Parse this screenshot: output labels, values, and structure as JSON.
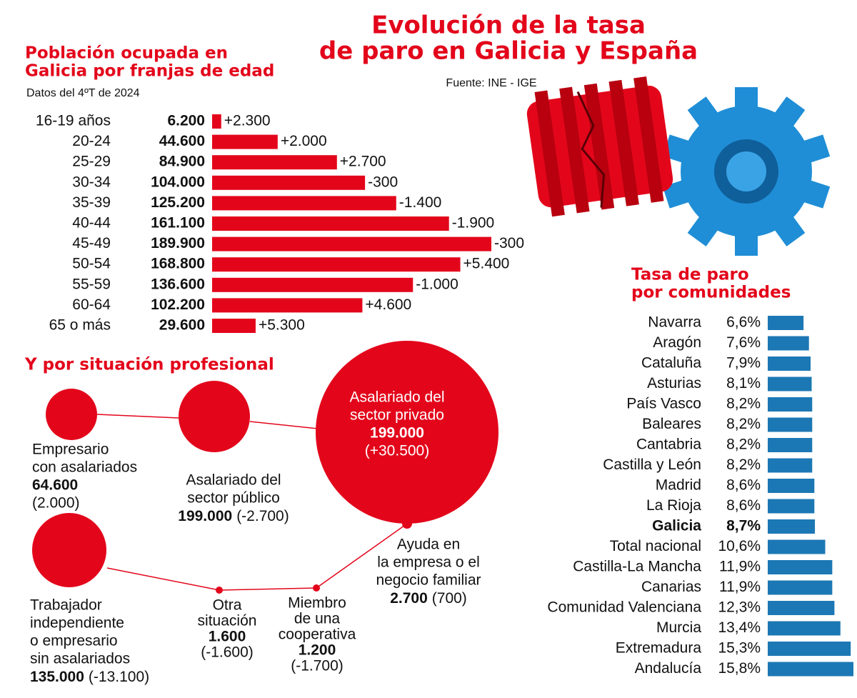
{
  "title": [
    "Evolución de la tasa",
    "de paro en Galicia y España"
  ],
  "source": "Fuente: INE - IGE",
  "chart_data": [
    {
      "type": "bar",
      "orientation": "horizontal",
      "title": [
        "Población ocupada en",
        "Galicia por franjas de edad"
      ],
      "subtitle": "Datos del 4ºT de 2024",
      "categories": [
        "16-19 años",
        "20-24",
        "25-29",
        "30-34",
        "35-39",
        "40-44",
        "45-49",
        "50-54",
        "55-59",
        "60-64",
        "65 o más"
      ],
      "values": [
        6200,
        44600,
        84900,
        104000,
        125200,
        161100,
        189900,
        168800,
        136600,
        102200,
        29600
      ],
      "value_labels": [
        "6.200",
        "44.600",
        "84.900",
        "104.000",
        "125.200",
        "161.100",
        "189.900",
        "168.800",
        "136.600",
        "102.200",
        "29.600"
      ],
      "changes": [
        2300,
        2000,
        2700,
        -300,
        -1400,
        -1900,
        -300,
        5400,
        -1000,
        4600,
        5300
      ],
      "change_labels": [
        "+2.300",
        "+2.000",
        "+2.700",
        "-300",
        "-1.400",
        "-1.900",
        "-300",
        "+5.400",
        "-1.000",
        "+4.600",
        "+5.300"
      ],
      "color": "#e3061b"
    },
    {
      "type": "bar",
      "orientation": "horizontal",
      "title": [
        "Tasa de paro",
        "por comunidades"
      ],
      "categories": [
        "Navarra",
        "Aragón",
        "Cataluña",
        "Asturias",
        "País Vasco",
        "Baleares",
        "Cantabria",
        "Castilla y León",
        "Madrid",
        "La Rioja",
        "Galicia",
        "Total nacional",
        "Castilla-La Mancha",
        "Canarias",
        "Comunidad Valenciana",
        "Murcia",
        "Extremadura",
        "Andalucía"
      ],
      "values": [
        6.6,
        7.6,
        7.9,
        8.1,
        8.2,
        8.2,
        8.2,
        8.2,
        8.6,
        8.6,
        8.7,
        10.6,
        11.9,
        11.9,
        12.3,
        13.4,
        15.3,
        15.8
      ],
      "value_labels": [
        "6,6%",
        "7,6%",
        "7,9%",
        "8,1%",
        "8,2%",
        "8,2%",
        "8,2%",
        "8,2%",
        "8,6%",
        "8,6%",
        "8,7%",
        "10,6%",
        "11,9%",
        "11,9%",
        "12,3%",
        "13,4%",
        "15,3%",
        "15,8%"
      ],
      "highlight": 10,
      "color": "#1c78b4"
    }
  ],
  "professional": {
    "title": "Y por situación profesional",
    "items": [
      {
        "label": [
          "Empresario",
          "con asalariados"
        ],
        "value": 64600,
        "value_label": "64.600",
        "change": 2000,
        "change_label": "(2.000)"
      },
      {
        "label": [
          "Asalariado del",
          "sector público"
        ],
        "value": 199000,
        "value_label": "199.000",
        "change": -2700,
        "change_label": "(-2.700)"
      },
      {
        "label": [
          "Asalariado del",
          "sector privado"
        ],
        "value": 199000,
        "value_label": "199.000",
        "change": 30500,
        "change_label": "(+30.500)"
      },
      {
        "label": [
          "Trabajador",
          "independiente",
          "o empresario",
          "sin asalariados"
        ],
        "value": 135000,
        "value_label": "135.000",
        "change": -13100,
        "change_label": "(-13.100)"
      },
      {
        "label": [
          "Otra",
          "situación"
        ],
        "value": 1600,
        "value_label": "1.600",
        "change": -1600,
        "change_label": "(-1.600)"
      },
      {
        "label": [
          "Miembro",
          "de una",
          "cooperativa"
        ],
        "value": 1200,
        "value_label": "1.200",
        "change": -1700,
        "change_label": "(-1.700)"
      },
      {
        "label": [
          "Ayuda en",
          "la empresa o el",
          "negocio familiar"
        ],
        "value": 2700,
        "value_label": "2.700",
        "change": 700,
        "change_label": "(700)"
      }
    ]
  }
}
